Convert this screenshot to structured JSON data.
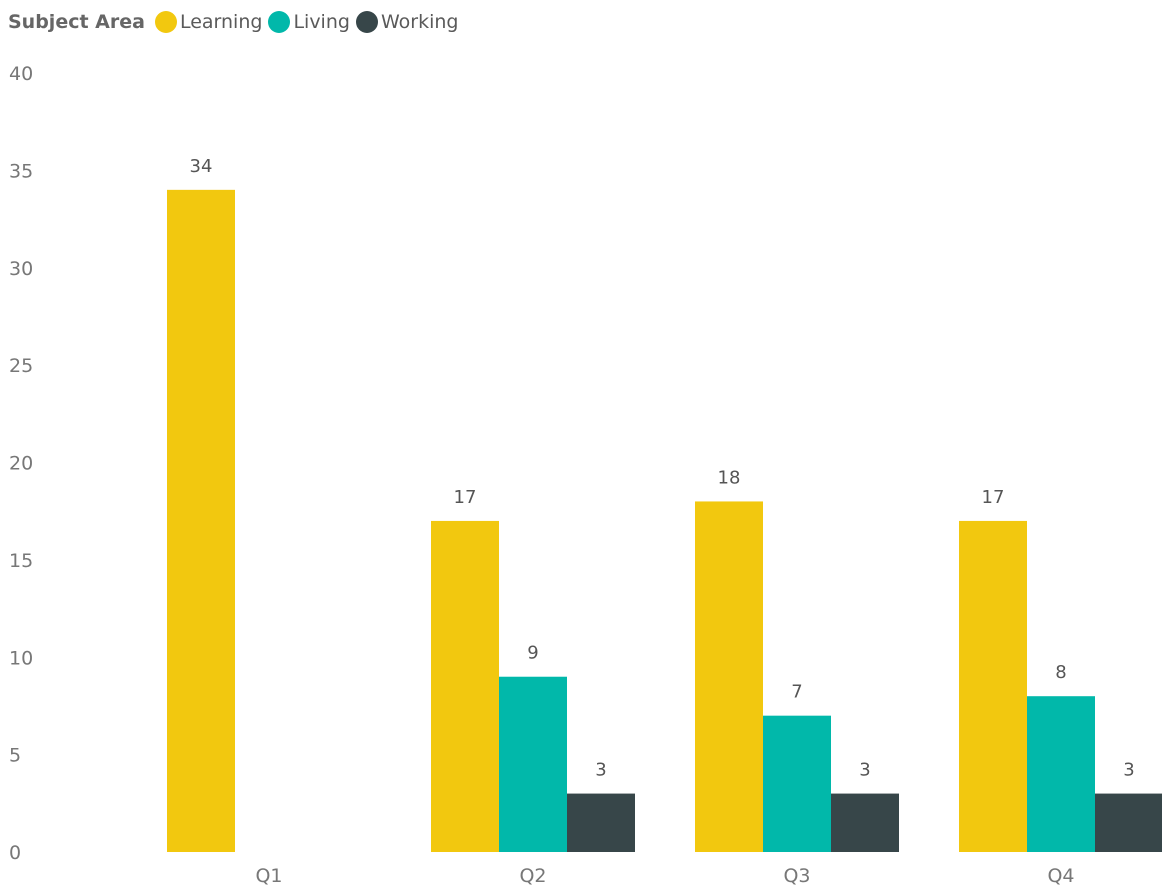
{
  "legend": {
    "title": "Subject Area",
    "items": [
      {
        "label": "Learning",
        "color": "#F2C80F"
      },
      {
        "label": "Living",
        "color": "#01B8AA"
      },
      {
        "label": "Working",
        "color": "#374649"
      }
    ]
  },
  "chart_data": {
    "type": "bar",
    "categories": [
      "Q1",
      "Q2",
      "Q3",
      "Q4"
    ],
    "series": [
      {
        "name": "Learning",
        "color": "#F2C80F",
        "values": [
          34,
          17,
          18,
          17
        ]
      },
      {
        "name": "Living",
        "color": "#01B8AA",
        "values": [
          null,
          9,
          7,
          8
        ]
      },
      {
        "name": "Working",
        "color": "#374649",
        "values": [
          null,
          3,
          3,
          3
        ]
      }
    ],
    "ylim": [
      0,
      40
    ],
    "yticks": [
      0,
      5,
      10,
      15,
      20,
      25,
      30,
      35,
      40
    ],
    "legend_title": "Subject Area",
    "legend_position": "top-left",
    "grid": false,
    "data_labels": true
  }
}
